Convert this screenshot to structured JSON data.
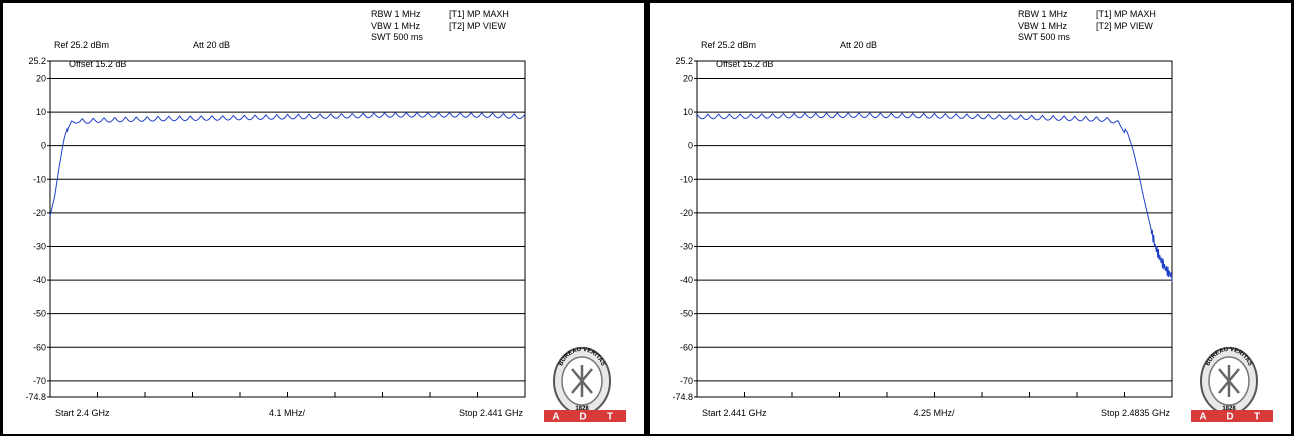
{
  "logo": {
    "top_text": "BUREAU VERITAS",
    "year": "1828",
    "badge": [
      "A",
      "D",
      "T"
    ]
  },
  "colors": {
    "trace": "#1f3fc8",
    "grid": "#000000",
    "badge": "#d83a3a"
  },
  "panels": [
    {
      "settings": {
        "rbw": "RBW 1 MHz",
        "vbw": "VBW 1 MHz",
        "swt": "SWT 500 ms",
        "trace1": "[T1] MP MAXH",
        "trace2": "[T2] MP VIEW"
      },
      "ref_label": "Ref 25.2 dBm",
      "att_label": "Att  20 dB",
      "offset_label": "Offset 15.2 dB",
      "bottom_labels": {
        "start": "Start 2.4 GHz",
        "span": "4.1 MHz/",
        "stop": "Stop 2.441 GHz"
      }
    },
    {
      "settings": {
        "rbw": "RBW 1 MHz",
        "vbw": "VBW 1 MHz",
        "swt": "SWT 500 ms",
        "trace1": "[T1] MP MAXH",
        "trace2": "[T2] MP VIEW"
      },
      "ref_label": "Ref 25.2 dBm",
      "att_label": "Att  20 dB",
      "offset_label": "Offset 15.2 dB",
      "bottom_labels": {
        "start": "Start 2.441 GHz",
        "span": "4.25 MHz/",
        "stop": "Stop 2.4835 GHz"
      }
    }
  ],
  "chart_data": [
    {
      "type": "line",
      "xlabel": "",
      "ylabel": "",
      "xlim": [
        2.4,
        2.441
      ],
      "ylim": [
        -74.8,
        25.2
      ],
      "y_ticks": [
        "25.2",
        "20",
        "10",
        "0",
        "-10",
        "-20",
        "-30",
        "-40",
        "-50",
        "-60",
        "-70",
        "-74.8"
      ],
      "grid": true,
      "series": [
        {
          "x": [
            2.4,
            2.4004,
            2.4008,
            2.4012,
            2.4016,
            2.402,
            2.4024,
            2.403,
            2.404,
            2.406,
            2.41,
            2.415,
            2.42,
            2.425,
            2.43,
            2.435,
            2.438,
            2.441
          ],
          "values": [
            -21,
            -15,
            -6,
            2,
            6.5,
            7.8,
            8.2,
            8.0,
            8.3,
            8.5,
            8.8,
            9.0,
            9.3,
            9.6,
            9.9,
            9.9,
            9.8,
            9.4
          ]
        }
      ]
    },
    {
      "type": "line",
      "xlabel": "",
      "ylabel": "",
      "xlim": [
        2.441,
        2.4835
      ],
      "ylim": [
        -74.8,
        25.2
      ],
      "y_ticks": [
        "25.2",
        "20",
        "10",
        "0",
        "-10",
        "-20",
        "-30",
        "-40",
        "-50",
        "-60",
        "-70",
        "-74.8"
      ],
      "grid": true,
      "series": [
        {
          "x": [
            2.441,
            2.445,
            2.45,
            2.455,
            2.46,
            2.465,
            2.47,
            2.475,
            2.4775,
            2.4785,
            2.479,
            2.4795,
            2.48,
            2.4805,
            2.481,
            2.4815,
            2.482,
            2.4825,
            2.483,
            2.4835
          ],
          "values": [
            9.4,
            9.5,
            9.7,
            9.8,
            9.7,
            9.5,
            9.2,
            8.8,
            8.6,
            8.0,
            6.5,
            4.0,
            -1,
            -8,
            -16,
            -23,
            -30,
            -34,
            -37,
            -39
          ]
        }
      ]
    }
  ]
}
